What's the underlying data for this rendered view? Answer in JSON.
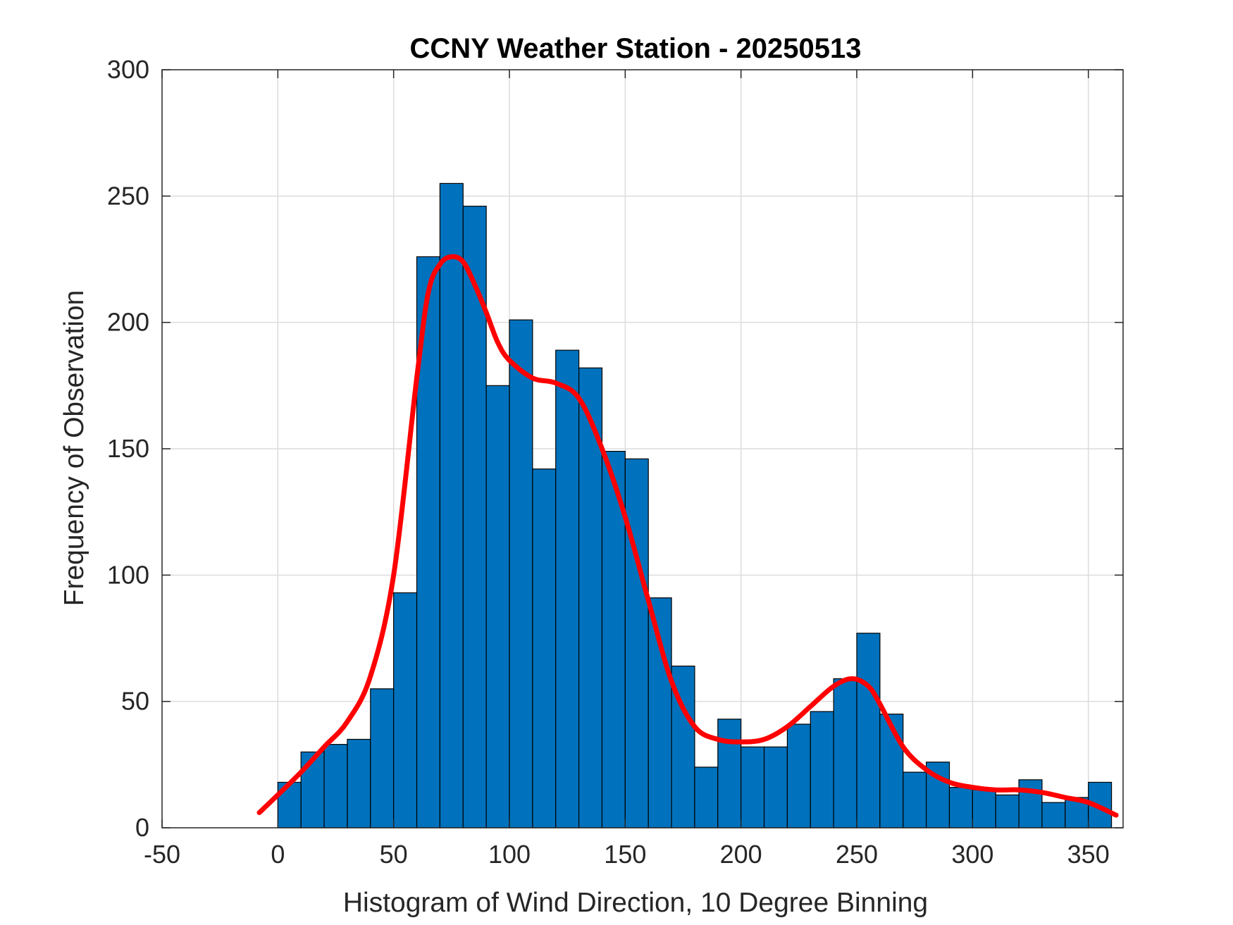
{
  "chart_data": {
    "type": "bar",
    "title": "CCNY Weather Station - 20250513",
    "xlabel": "Histogram of Wind Direction, 10 Degree Binning",
    "ylabel": "Frequency of Observation",
    "xlim": [
      -50,
      365
    ],
    "ylim": [
      0,
      300
    ],
    "xticks": [
      -50,
      0,
      50,
      100,
      150,
      200,
      250,
      300,
      350
    ],
    "yticks": [
      0,
      50,
      100,
      150,
      200,
      250,
      300
    ],
    "grid": true,
    "bin_width": 10,
    "bin_edges_start": [
      0,
      10,
      20,
      30,
      40,
      50,
      60,
      70,
      80,
      90,
      100,
      110,
      120,
      130,
      140,
      150,
      160,
      170,
      180,
      190,
      200,
      210,
      220,
      230,
      240,
      250,
      260,
      270,
      280,
      290,
      300,
      310,
      320,
      330,
      340,
      350
    ],
    "values": [
      18,
      30,
      33,
      35,
      55,
      93,
      226,
      255,
      246,
      175,
      201,
      142,
      189,
      182,
      149,
      146,
      91,
      64,
      24,
      43,
      32,
      32,
      41,
      46,
      59,
      77,
      45,
      22,
      26,
      16,
      15,
      13,
      19,
      10,
      12,
      18
    ],
    "bar_color": "#0072BD",
    "fit_curve": {
      "color": "#FF0000",
      "x": [
        -8,
        0,
        10,
        20,
        30,
        40,
        50,
        60,
        65,
        70,
        75,
        80,
        85,
        90,
        95,
        100,
        110,
        120,
        130,
        140,
        150,
        160,
        170,
        180,
        190,
        200,
        210,
        220,
        230,
        240,
        248,
        255,
        260,
        270,
        280,
        290,
        300,
        310,
        320,
        330,
        340,
        350,
        362
      ],
      "y": [
        6,
        13,
        22,
        32,
        42,
        60,
        100,
        178,
        212,
        223,
        226,
        224,
        215,
        204,
        192,
        185,
        178,
        176,
        170,
        150,
        123,
        90,
        58,
        40,
        35,
        34,
        35,
        40,
        48,
        56,
        59,
        56,
        49,
        32,
        23,
        18,
        16,
        15,
        15,
        14,
        12,
        10,
        5
      ]
    }
  }
}
